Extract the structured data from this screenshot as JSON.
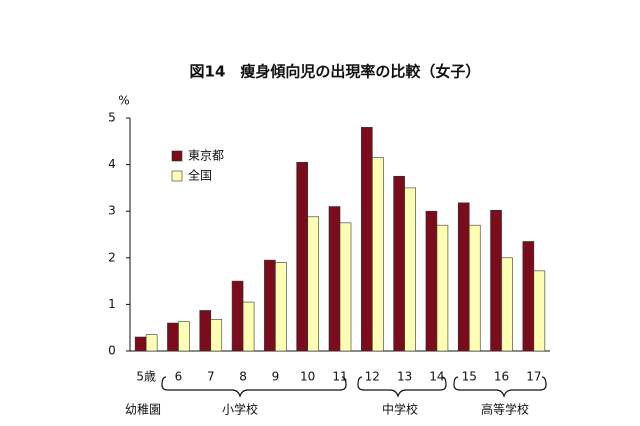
{
  "chart_data": {
    "type": "bar",
    "title": "図14　痩身傾向児の出現率の比較（女子）",
    "y_label": "%",
    "categories": [
      "5歳",
      "6",
      "7",
      "8",
      "9",
      "10",
      "11",
      "12",
      "13",
      "14",
      "15",
      "16",
      "17"
    ],
    "groups": [
      "幼稚園",
      "小学校",
      "中学校",
      "高等学校"
    ],
    "series": [
      {
        "name": "東京都",
        "color": "#7a0c1c",
        "values": [
          0.3,
          0.6,
          0.87,
          1.5,
          1.95,
          4.05,
          3.1,
          4.8,
          3.75,
          3.0,
          3.18,
          3.02,
          2.35
        ]
      },
      {
        "name": "全国",
        "color": "#ffffb3",
        "values": [
          0.35,
          0.63,
          0.68,
          1.05,
          1.9,
          2.88,
          2.75,
          4.15,
          3.5,
          2.7,
          2.7,
          2.0,
          1.72
        ]
      }
    ],
    "ylim": [
      0,
      5
    ],
    "yticks": [
      0,
      1,
      2,
      3,
      4,
      5
    ],
    "grid": false
  }
}
